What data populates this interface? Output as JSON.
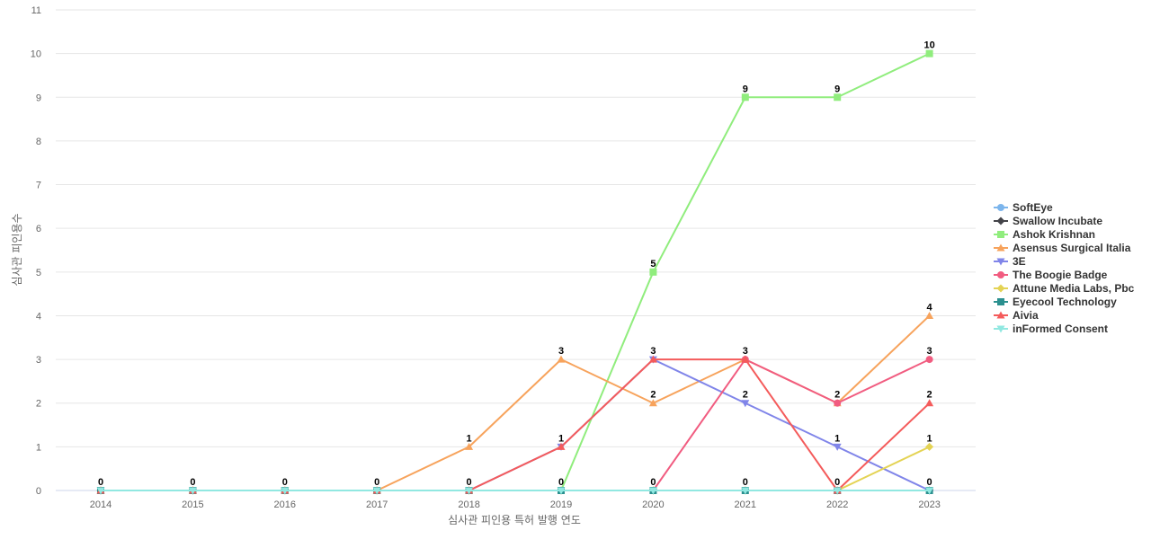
{
  "chart_data": {
    "type": "line",
    "xlabel": "심사관 피인용 특허 발행 연도",
    "ylabel": "심사관 피인용수",
    "categories": [
      "2014",
      "2015",
      "2016",
      "2017",
      "2018",
      "2019",
      "2020",
      "2021",
      "2022",
      "2023"
    ],
    "y_ticks": [
      0,
      1,
      2,
      3,
      4,
      5,
      6,
      7,
      8,
      9,
      10,
      11
    ],
    "ylim": [
      0,
      11
    ],
    "grid": true,
    "legend_position": "right",
    "series": [
      {
        "name": "SoftEye",
        "color": "#7cb5ec",
        "marker": "circle",
        "values": [
          0,
          0,
          0,
          0,
          0,
          0,
          0,
          0,
          0,
          0
        ]
      },
      {
        "name": "Swallow Incubate",
        "color": "#434348",
        "marker": "diamond",
        "values": [
          0,
          0,
          0,
          0,
          0,
          0,
          0,
          0,
          0,
          0
        ]
      },
      {
        "name": "Ashok Krishnan",
        "color": "#90ed7d",
        "marker": "square",
        "values": [
          0,
          0,
          0,
          0,
          0,
          0,
          5,
          9,
          9,
          10
        ]
      },
      {
        "name": "Asensus Surgical Italia",
        "color": "#f7a35c",
        "marker": "triangle",
        "values": [
          0,
          0,
          0,
          0,
          1,
          3,
          2,
          3,
          2,
          4
        ]
      },
      {
        "name": "3E",
        "color": "#8085e9",
        "marker": "triangle-down",
        "values": [
          0,
          0,
          0,
          0,
          0,
          1,
          3,
          2,
          1,
          0
        ]
      },
      {
        "name": "The Boogie Badge",
        "color": "#f15c80",
        "marker": "circle",
        "values": [
          0,
          0,
          0,
          0,
          0,
          0,
          0,
          3,
          2,
          3
        ]
      },
      {
        "name": "Attune Media Labs, Pbc",
        "color": "#e4d354",
        "marker": "diamond",
        "values": [
          0,
          0,
          0,
          0,
          0,
          0,
          0,
          0,
          0,
          1
        ]
      },
      {
        "name": "Eyecool Technology",
        "color": "#2b908f",
        "marker": "square",
        "values": [
          0,
          0,
          0,
          0,
          0,
          0,
          0,
          0,
          0,
          0
        ]
      },
      {
        "name": "Aivia",
        "color": "#f45b5b",
        "marker": "triangle",
        "values": [
          0,
          0,
          0,
          0,
          0,
          1,
          3,
          3,
          0,
          2
        ]
      },
      {
        "name": "inFormed Consent",
        "color": "#91e8e1",
        "marker": "triangle-down",
        "values": [
          0,
          0,
          0,
          0,
          0,
          0,
          0,
          0,
          0,
          0
        ]
      }
    ],
    "data_labels": [
      {
        "x": "2014",
        "value": 0
      },
      {
        "x": "2015",
        "value": 0
      },
      {
        "x": "2016",
        "value": 0
      },
      {
        "x": "2017",
        "value": 0
      },
      {
        "x": "2018",
        "value": 1
      },
      {
        "x": "2018",
        "value": 0
      },
      {
        "x": "2019",
        "value": 3
      },
      {
        "x": "2019",
        "value": 1
      },
      {
        "x": "2019",
        "value": 0
      },
      {
        "x": "2020",
        "value": 5
      },
      {
        "x": "2020",
        "value": 3
      },
      {
        "x": "2020",
        "value": 2
      },
      {
        "x": "2020",
        "value": 0
      },
      {
        "x": "2021",
        "value": 9
      },
      {
        "x": "2021",
        "value": 3
      },
      {
        "x": "2021",
        "value": 2
      },
      {
        "x": "2021",
        "value": 0
      },
      {
        "x": "2022",
        "value": 9
      },
      {
        "x": "2022",
        "value": 2
      },
      {
        "x": "2022",
        "value": 1
      },
      {
        "x": "2022",
        "value": 0
      },
      {
        "x": "2023",
        "value": 10
      },
      {
        "x": "2023",
        "value": 4
      },
      {
        "x": "2023",
        "value": 3
      },
      {
        "x": "2023",
        "value": 2
      },
      {
        "x": "2023",
        "value": 1
      },
      {
        "x": "2023",
        "value": 0
      }
    ]
  }
}
